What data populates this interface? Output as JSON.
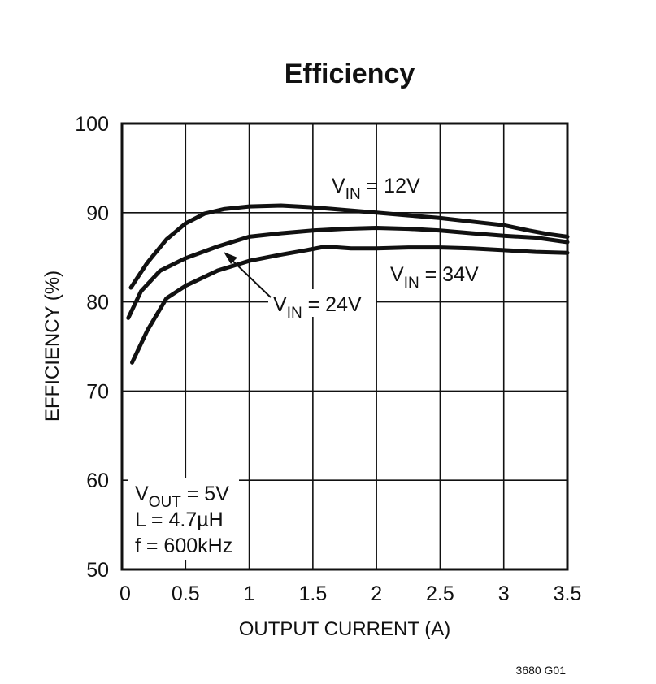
{
  "chart_data": {
    "type": "line",
    "title": "Efficiency",
    "xlabel": "OUTPUT CURRENT (A)",
    "ylabel": "EFFICIENCY (%)",
    "xlim": [
      0,
      3.5
    ],
    "ylim": [
      50,
      100
    ],
    "x_ticks": [
      0,
      0.5,
      1,
      1.5,
      2,
      2.5,
      3,
      3.5
    ],
    "x_tick_labels": [
      "0",
      "0.5",
      "1",
      "1.5",
      "2",
      "2.5",
      "3",
      "3.5"
    ],
    "y_ticks": [
      50,
      60,
      70,
      80,
      90,
      100
    ],
    "y_tick_labels": [
      "50",
      "60",
      "70",
      "80",
      "90",
      "100"
    ],
    "grid": true,
    "series": [
      {
        "name": "VIN = 12V",
        "label_main": "V",
        "label_sub": "IN",
        "label_rest": " = 12V",
        "x": [
          0.07,
          0.2,
          0.35,
          0.5,
          0.65,
          0.8,
          1.0,
          1.25,
          1.5,
          1.75,
          2.0,
          2.25,
          2.5,
          2.75,
          3.0,
          3.2,
          3.35,
          3.5
        ],
        "y": [
          81.6,
          84.4,
          87.0,
          88.8,
          89.9,
          90.4,
          90.7,
          90.8,
          90.6,
          90.3,
          90.0,
          89.7,
          89.4,
          89.0,
          88.6,
          88.0,
          87.6,
          87.3
        ]
      },
      {
        "name": "VIN = 24V",
        "label_main": "V",
        "label_sub": "IN",
        "label_rest": " = 24V",
        "x": [
          0.05,
          0.15,
          0.3,
          0.5,
          0.75,
          1.0,
          1.25,
          1.5,
          1.75,
          2.0,
          2.25,
          2.5,
          2.75,
          3.0,
          3.25,
          3.5
        ],
        "y": [
          78.2,
          81.2,
          83.5,
          84.9,
          86.2,
          87.3,
          87.7,
          88.0,
          88.2,
          88.3,
          88.2,
          88.0,
          87.7,
          87.4,
          87.2,
          86.7
        ]
      },
      {
        "name": "VIN = 34V",
        "label_main": "V",
        "label_sub": "IN",
        "label_rest": " = 34V",
        "x": [
          0.08,
          0.2,
          0.35,
          0.5,
          0.75,
          1.0,
          1.25,
          1.45,
          1.6,
          1.8,
          2.0,
          2.25,
          2.5,
          2.75,
          3.0,
          3.25,
          3.5
        ],
        "y": [
          73.2,
          76.8,
          80.4,
          81.8,
          83.5,
          84.6,
          85.3,
          85.8,
          86.2,
          86.0,
          86.0,
          86.1,
          86.1,
          86.0,
          85.8,
          85.6,
          85.5
        ]
      }
    ],
    "conditions": {
      "vout_main": "V",
      "vout_sub": "OUT",
      "vout_rest": " = 5V",
      "inductor": "L = 4.7µH",
      "frequency": "f = 600kHz"
    },
    "figure_id": "3680 G01"
  }
}
